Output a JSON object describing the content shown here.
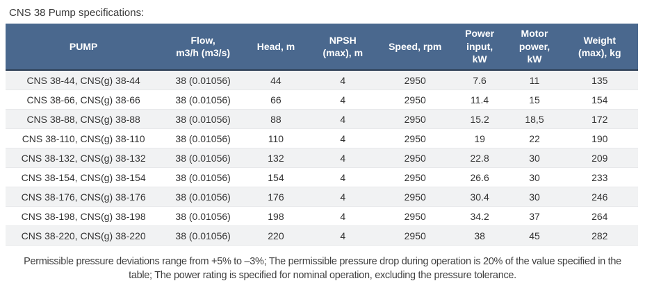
{
  "title": "CNS 38 Pump specifications:",
  "table": {
    "columns": [
      {
        "key": "pump",
        "label": "PUMP"
      },
      {
        "key": "flow",
        "label": "Flow,\nm3/h (m3/s)"
      },
      {
        "key": "head",
        "label": "Head, m"
      },
      {
        "key": "npsh",
        "label": "NPSH\n(max), m"
      },
      {
        "key": "speed",
        "label": "Speed, rpm"
      },
      {
        "key": "power-input",
        "label": "Power\ninput,\nkW"
      },
      {
        "key": "motor-power",
        "label": "Motor\npower,\nkW"
      },
      {
        "key": "weight",
        "label": "Weight\n(max), kg"
      }
    ],
    "rows": [
      [
        "CNS 38-44, CNS(g) 38-44",
        "38 (0.01056)",
        "44",
        "4",
        "2950",
        "7.6",
        "11",
        "135"
      ],
      [
        "CNS 38-66, CNS(g) 38-66",
        "38 (0.01056)",
        "66",
        "4",
        "2950",
        "11.4",
        "15",
        "154"
      ],
      [
        "CNS 38-88, CNS(g) 38-88",
        "38 (0.01056)",
        "88",
        "4",
        "2950",
        "15.2",
        "18,5",
        "172"
      ],
      [
        "CNS 38-110, CNS(g) 38-110",
        "38 (0.01056)",
        "110",
        "4",
        "2950",
        "19",
        "22",
        "190"
      ],
      [
        "CNS 38-132, CNS(g) 38-132",
        "38 (0.01056)",
        "132",
        "4",
        "2950",
        "22.8",
        "30",
        "209"
      ],
      [
        "CNS 38-154, CNS(g) 38-154",
        "38 (0.01056)",
        "154",
        "4",
        "2950",
        "26.6",
        "30",
        "233"
      ],
      [
        "CNS 38-176, CNS(g) 38-176",
        "38 (0.01056)",
        "176",
        "4",
        "2950",
        "30.4",
        "30",
        "246"
      ],
      [
        "CNS 38-198, CNS(g) 38-198",
        "38 (0.01056)",
        "198",
        "4",
        "2950",
        "34.2",
        "37",
        "264"
      ],
      [
        "CNS 38-220, CNS(g) 38-220",
        "38 (0.01056)",
        "220",
        "4",
        "2950",
        "38",
        "45",
        "282"
      ]
    ]
  },
  "footnote": "Permissible pressure deviations range from +5% to –3%; The permissible pressure drop during operation is 20% of the value specified in the table; The power rating is specified for nominal operation, excluding the pressure tolerance.",
  "colors": {
    "header_bg": "#4a688e",
    "header_border": "#2b3c52",
    "row_stripe": "#f1f2f3",
    "body_text": "#333333"
  }
}
